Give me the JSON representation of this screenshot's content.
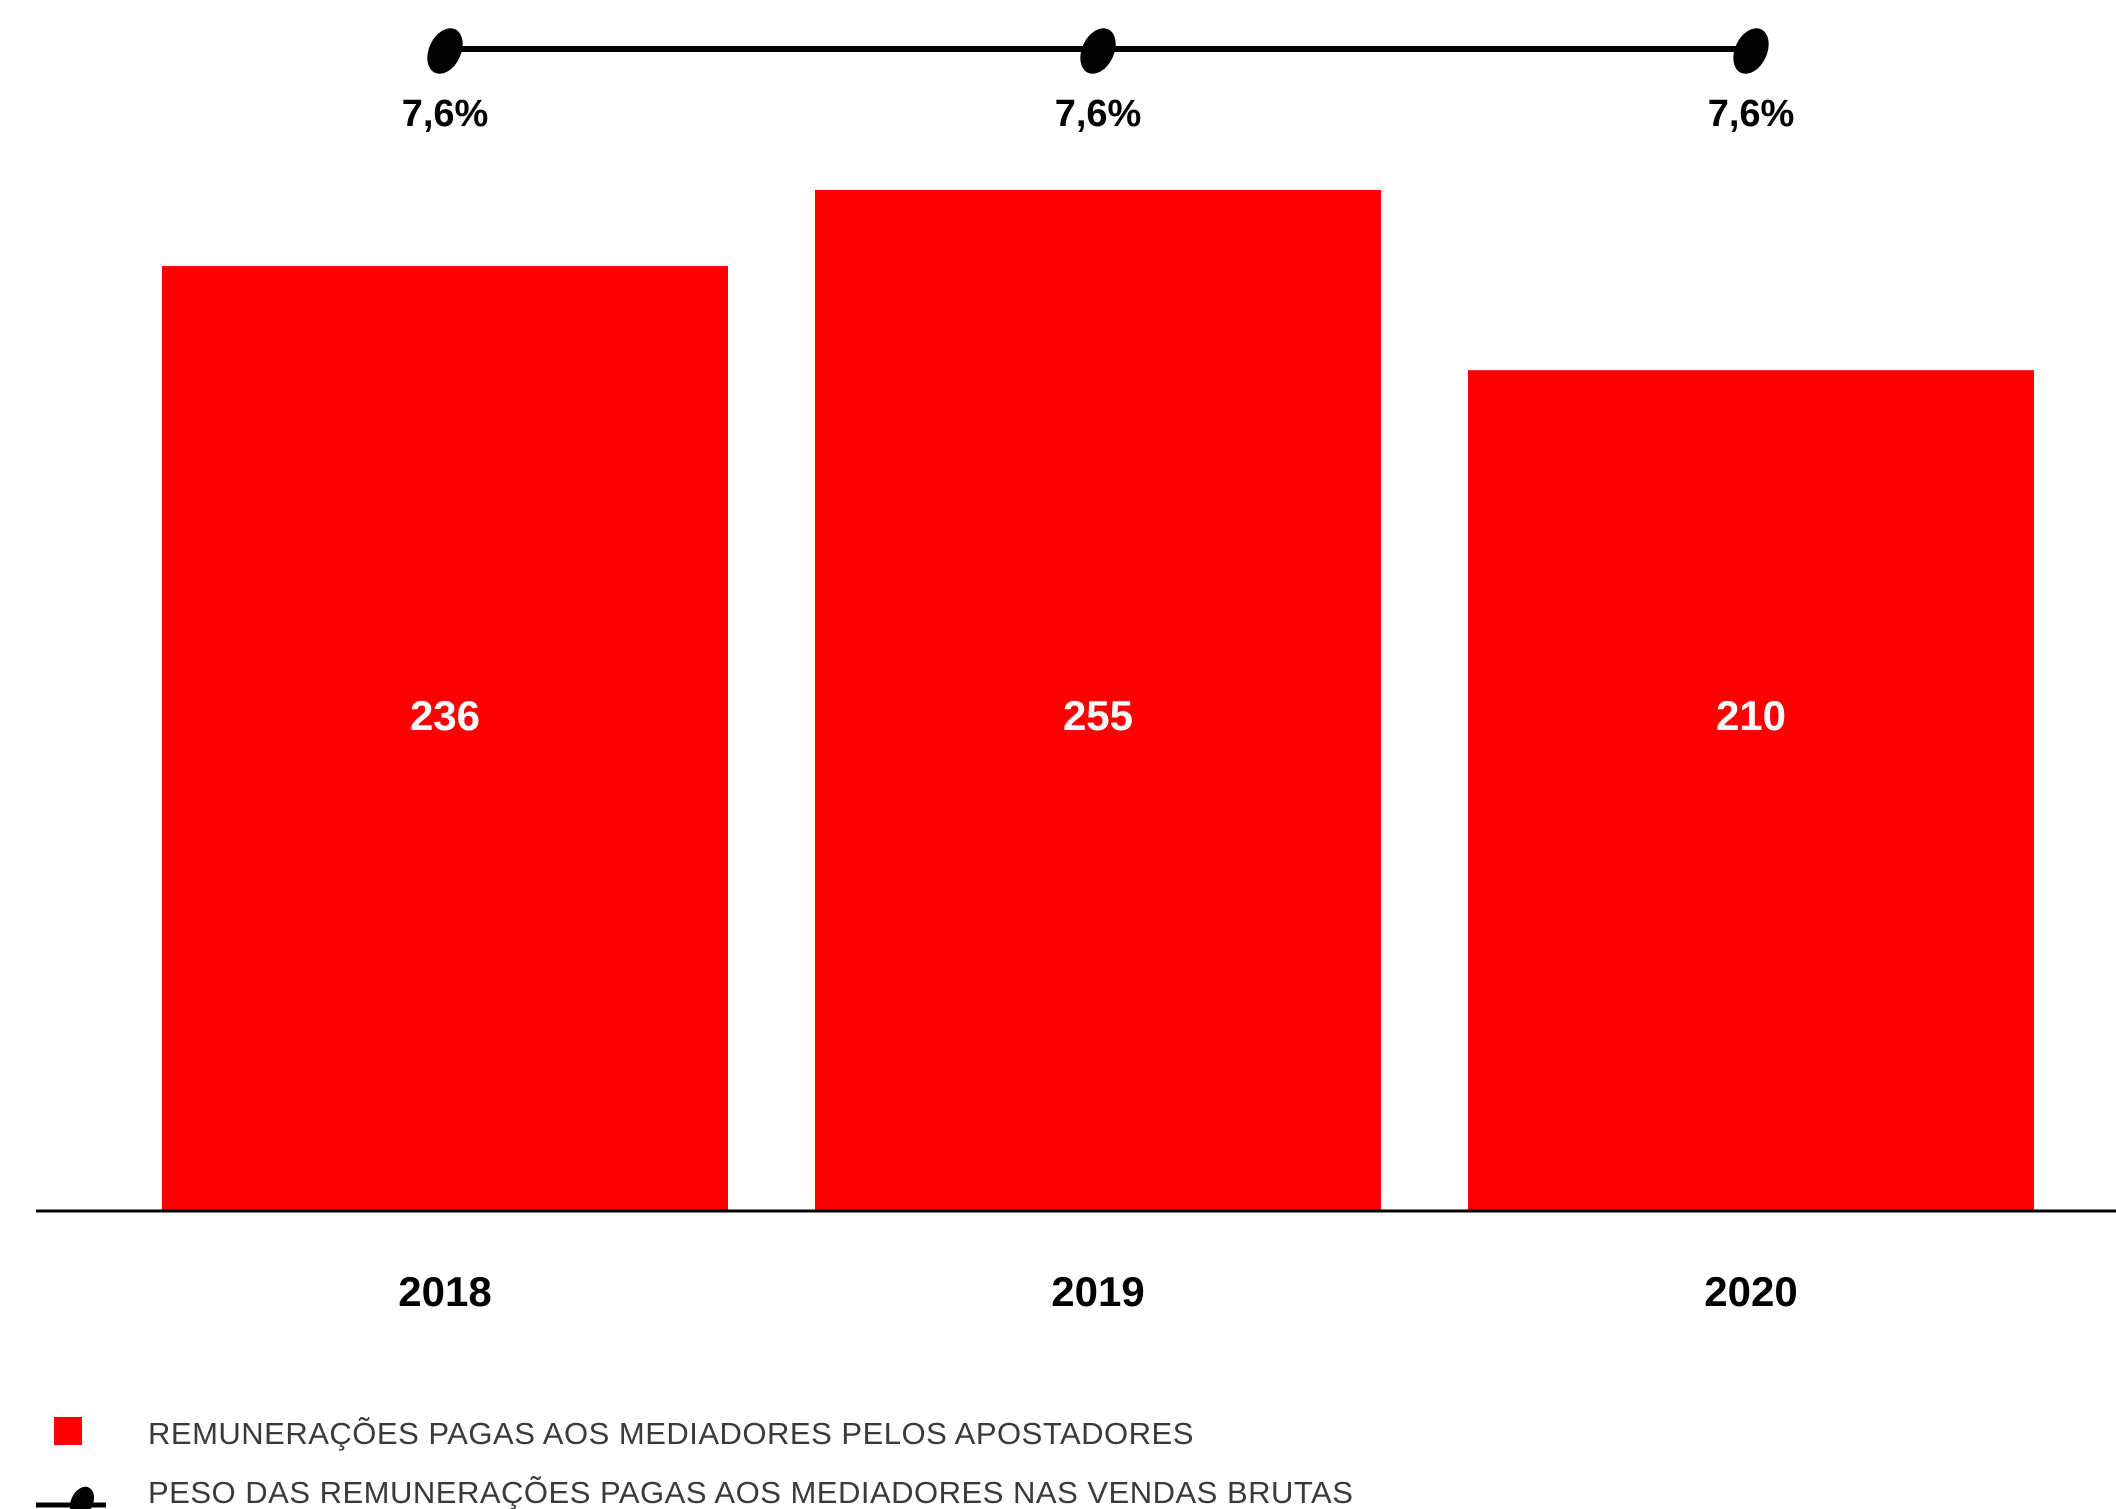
{
  "chart_data": {
    "type": "bar",
    "categories": [
      "2018",
      "2019",
      "2020"
    ],
    "series": [
      {
        "name": "REMUNERAÇÕES PAGAS AOS MEDIADORES PELOS APOSTADORES",
        "kind": "bar",
        "color": "#ff0000",
        "values": [
          236,
          255,
          210
        ],
        "labels": [
          "236",
          "255",
          "210"
        ]
      },
      {
        "name": "PESO DAS REMUNERAÇÕES PAGAS AOS MEDIADORES NAS VENDAS BRUTAS",
        "kind": "line",
        "color": "#000000",
        "values": [
          7.6,
          7.6,
          7.6
        ],
        "labels": [
          "7,6%",
          "7,6%",
          "7,6%"
        ]
      }
    ],
    "ylim": [
      0,
      255
    ],
    "grid": false,
    "legend_position": "bottom-left"
  }
}
